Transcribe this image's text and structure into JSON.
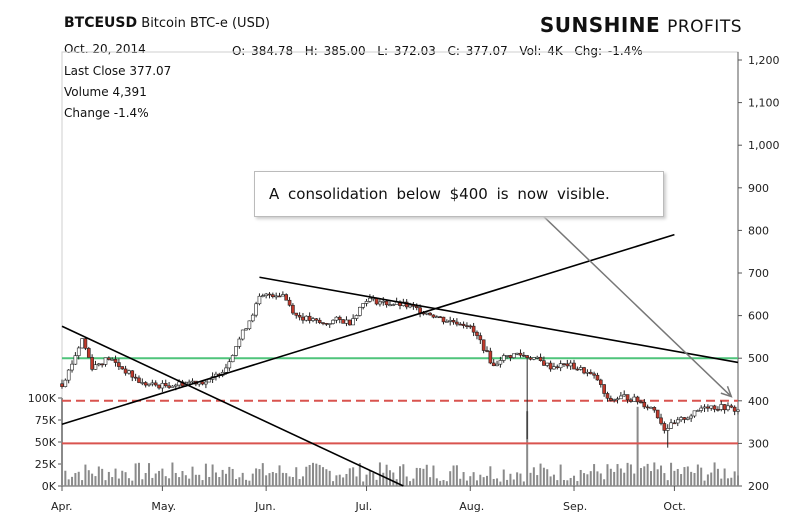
{
  "header": {
    "symbol": "BTCEUSD",
    "name": "Bitcoin BTC-e (USD)",
    "date": "Oct. 20, 2014",
    "brand_bold": "SUNSHINE",
    "brand_rest": "PROFITS",
    "ohlc": {
      "open_label": "O:",
      "open": "384.78",
      "high_label": "H:",
      "high": "385.00",
      "low_label": "L:",
      "low": "372.03",
      "close_label": "C:",
      "close": "377.07",
      "vol_label": "Vol:",
      "vol": "4K",
      "chg_label": "Chg:",
      "chg": "-1.4%"
    },
    "last_close_label": "Last Close",
    "last_close": "377.07",
    "volume_label": "Volume",
    "volume": "4,391",
    "change_label": "Change",
    "change": "-1.4%"
  },
  "annotation": "A consolidation below $400 is now visible.",
  "colors": {
    "up": "#ffffff",
    "down": "#c0392b",
    "wick": "#222222",
    "support": "#4ec47a",
    "resistance_dashed": "#d9534f",
    "support_red": "#d9534f",
    "trend": "#000000",
    "arrow": "#777777",
    "volume": "#8a8a8a"
  },
  "chart_data": {
    "type": "candlestick",
    "price_axis": {
      "min": 200,
      "max": 1200,
      "ticks": [
        200,
        300,
        400,
        500,
        600,
        700,
        800,
        900,
        1000,
        1100,
        1200
      ],
      "tick_labels": [
        "200",
        "300",
        "400",
        "500",
        "600",
        "700",
        "800",
        "900",
        "1,000",
        "1,100",
        "1,200"
      ]
    },
    "volume_axis": {
      "ticks": [
        0,
        25,
        50,
        75,
        100
      ],
      "tick_labels": [
        "0K",
        "25K",
        "50K",
        "75K",
        "100K"
      ]
    },
    "months": [
      "Apr.",
      "May.",
      "Jun.",
      "Jul.",
      "Aug.",
      "Sep.",
      "Oct."
    ],
    "month_starts": [
      "2014-04-01",
      "2014-05-01",
      "2014-06-01",
      "2014-07-01",
      "2014-08-01",
      "2014-09-01",
      "2014-10-01"
    ],
    "date_range": [
      "2014-04-01",
      "2014-10-20"
    ],
    "price_anchors": [
      [
        "2014-04-01",
        440
      ],
      [
        "2014-04-03",
        470
      ],
      [
        "2014-04-07",
        545
      ],
      [
        "2014-04-10",
        480
      ],
      [
        "2014-04-15",
        500
      ],
      [
        "2014-04-20",
        470
      ],
      [
        "2014-04-25",
        440
      ],
      [
        "2014-05-01",
        435
      ],
      [
        "2014-05-06",
        440
      ],
      [
        "2014-05-10",
        445
      ],
      [
        "2014-05-15",
        445
      ],
      [
        "2014-05-20",
        480
      ],
      [
        "2014-05-23",
        530
      ],
      [
        "2014-05-27",
        590
      ],
      [
        "2014-05-30",
        640
      ],
      [
        "2014-06-02",
        650
      ],
      [
        "2014-06-06",
        650
      ],
      [
        "2014-06-10",
        600
      ],
      [
        "2014-06-14",
        590
      ],
      [
        "2014-06-18",
        580
      ],
      [
        "2014-06-22",
        590
      ],
      [
        "2014-06-26",
        585
      ],
      [
        "2014-07-01",
        640
      ],
      [
        "2014-07-06",
        630
      ],
      [
        "2014-07-12",
        625
      ],
      [
        "2014-07-16",
        615
      ],
      [
        "2014-07-20",
        605
      ],
      [
        "2014-07-24",
        590
      ],
      [
        "2014-07-28",
        585
      ],
      [
        "2014-07-31",
        580
      ],
      [
        "2014-08-04",
        540
      ],
      [
        "2014-08-08",
        480
      ],
      [
        "2014-08-10",
        500
      ],
      [
        "2014-08-15",
        510
      ],
      [
        "2014-08-20",
        500
      ],
      [
        "2014-08-25",
        480
      ],
      [
        "2014-08-30",
        485
      ],
      [
        "2014-09-04",
        470
      ],
      [
        "2014-09-08",
        450
      ],
      [
        "2014-09-11",
        400
      ],
      [
        "2014-09-16",
        410
      ],
      [
        "2014-09-20",
        400
      ],
      [
        "2014-09-25",
        380
      ],
      [
        "2014-09-28",
        335
      ],
      [
        "2014-10-01",
        345
      ],
      [
        "2014-10-04",
        360
      ],
      [
        "2014-10-07",
        370
      ],
      [
        "2014-10-10",
        390
      ],
      [
        "2014-10-13",
        385
      ],
      [
        "2014-10-16",
        385
      ],
      [
        "2014-10-20",
        377.07
      ]
    ],
    "spikes": [
      {
        "date": "2014-08-18",
        "low": 310
      },
      {
        "date": "2014-09-29",
        "low": 290
      }
    ],
    "volume_spikes": [
      {
        "date": "2014-04-01",
        "value": 100
      },
      {
        "date": "2014-08-18",
        "value": 85
      },
      {
        "date": "2014-09-20",
        "value": 90
      }
    ],
    "horizontal_lines": [
      {
        "name": "support-green",
        "price": 500,
        "style": "solid"
      },
      {
        "name": "resistance-dashed",
        "price": 400,
        "style": "dashed"
      },
      {
        "name": "support-red",
        "price": 300,
        "style": "solid"
      }
    ],
    "trendlines": [
      {
        "name": "rising",
        "from": [
          "2014-04-01",
          345
        ],
        "to": [
          "2014-10-01",
          790
        ]
      },
      {
        "name": "falling-long",
        "from": [
          "2014-05-30",
          690
        ],
        "to": [
          "2014-10-20",
          490
        ]
      },
      {
        "name": "falling-short",
        "from": [
          "2014-04-01",
          575
        ],
        "to": [
          "2014-07-12",
          200
        ]
      }
    ],
    "arrow": {
      "from": [
        "2014-08-10",
        930
      ],
      "to": [
        "2014-10-18",
        410
      ]
    }
  }
}
